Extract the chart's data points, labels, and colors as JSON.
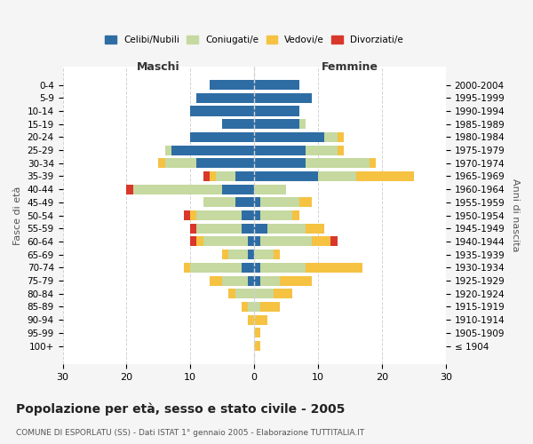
{
  "age_groups": [
    "100+",
    "95-99",
    "90-94",
    "85-89",
    "80-84",
    "75-79",
    "70-74",
    "65-69",
    "60-64",
    "55-59",
    "50-54",
    "45-49",
    "40-44",
    "35-39",
    "30-34",
    "25-29",
    "20-24",
    "15-19",
    "10-14",
    "5-9",
    "0-4"
  ],
  "birth_years": [
    "≤ 1904",
    "1905-1909",
    "1910-1914",
    "1915-1919",
    "1920-1924",
    "1925-1929",
    "1930-1934",
    "1935-1939",
    "1940-1944",
    "1945-1949",
    "1950-1954",
    "1955-1959",
    "1960-1964",
    "1965-1969",
    "1970-1974",
    "1975-1979",
    "1980-1984",
    "1985-1989",
    "1990-1994",
    "1995-1999",
    "2000-2004"
  ],
  "male": {
    "celibi": [
      0,
      0,
      0,
      0,
      0,
      1,
      2,
      1,
      1,
      2,
      2,
      3,
      5,
      3,
      9,
      13,
      10,
      5,
      10,
      9,
      7
    ],
    "coniugati": [
      0,
      0,
      0,
      1,
      3,
      4,
      8,
      3,
      7,
      7,
      7,
      5,
      14,
      3,
      5,
      1,
      0,
      0,
      0,
      0,
      0
    ],
    "vedovi": [
      0,
      0,
      1,
      1,
      1,
      2,
      1,
      1,
      1,
      0,
      1,
      0,
      0,
      1,
      1,
      0,
      0,
      0,
      0,
      0,
      0
    ],
    "divorziati": [
      0,
      0,
      0,
      0,
      0,
      0,
      0,
      0,
      1,
      1,
      1,
      0,
      1,
      1,
      0,
      0,
      0,
      0,
      0,
      0,
      0
    ]
  },
  "female": {
    "nubili": [
      0,
      0,
      0,
      0,
      0,
      1,
      1,
      0,
      1,
      2,
      1,
      1,
      0,
      10,
      8,
      8,
      11,
      7,
      7,
      9,
      7
    ],
    "coniugate": [
      0,
      0,
      0,
      1,
      3,
      3,
      7,
      3,
      8,
      6,
      5,
      6,
      5,
      6,
      10,
      5,
      2,
      1,
      0,
      0,
      0
    ],
    "vedove": [
      1,
      1,
      2,
      3,
      3,
      5,
      9,
      1,
      3,
      3,
      1,
      2,
      0,
      9,
      1,
      1,
      1,
      0,
      0,
      0,
      0
    ],
    "divorziate": [
      0,
      0,
      0,
      0,
      0,
      0,
      0,
      0,
      1,
      0,
      0,
      0,
      0,
      0,
      0,
      0,
      0,
      0,
      0,
      0,
      0
    ]
  },
  "colors": {
    "celibi": "#2e6da4",
    "coniugati": "#c5d9a0",
    "vedovi": "#f5c242",
    "divorziati": "#d9372a"
  },
  "xlim": 30,
  "title": "Popolazione per età, sesso e stato civile - 2005",
  "subtitle": "COMUNE DI ESPORLATU (SS) - Dati ISTAT 1° gennaio 2005 - Elaborazione TUTTITALIA.IT",
  "ylabel_left": "Fasce di età",
  "ylabel_right": "Anni di nascita",
  "xlabel_male": "Maschi",
  "xlabel_female": "Femmine",
  "bg_color": "#f5f5f5",
  "plot_bg": "#ffffff"
}
